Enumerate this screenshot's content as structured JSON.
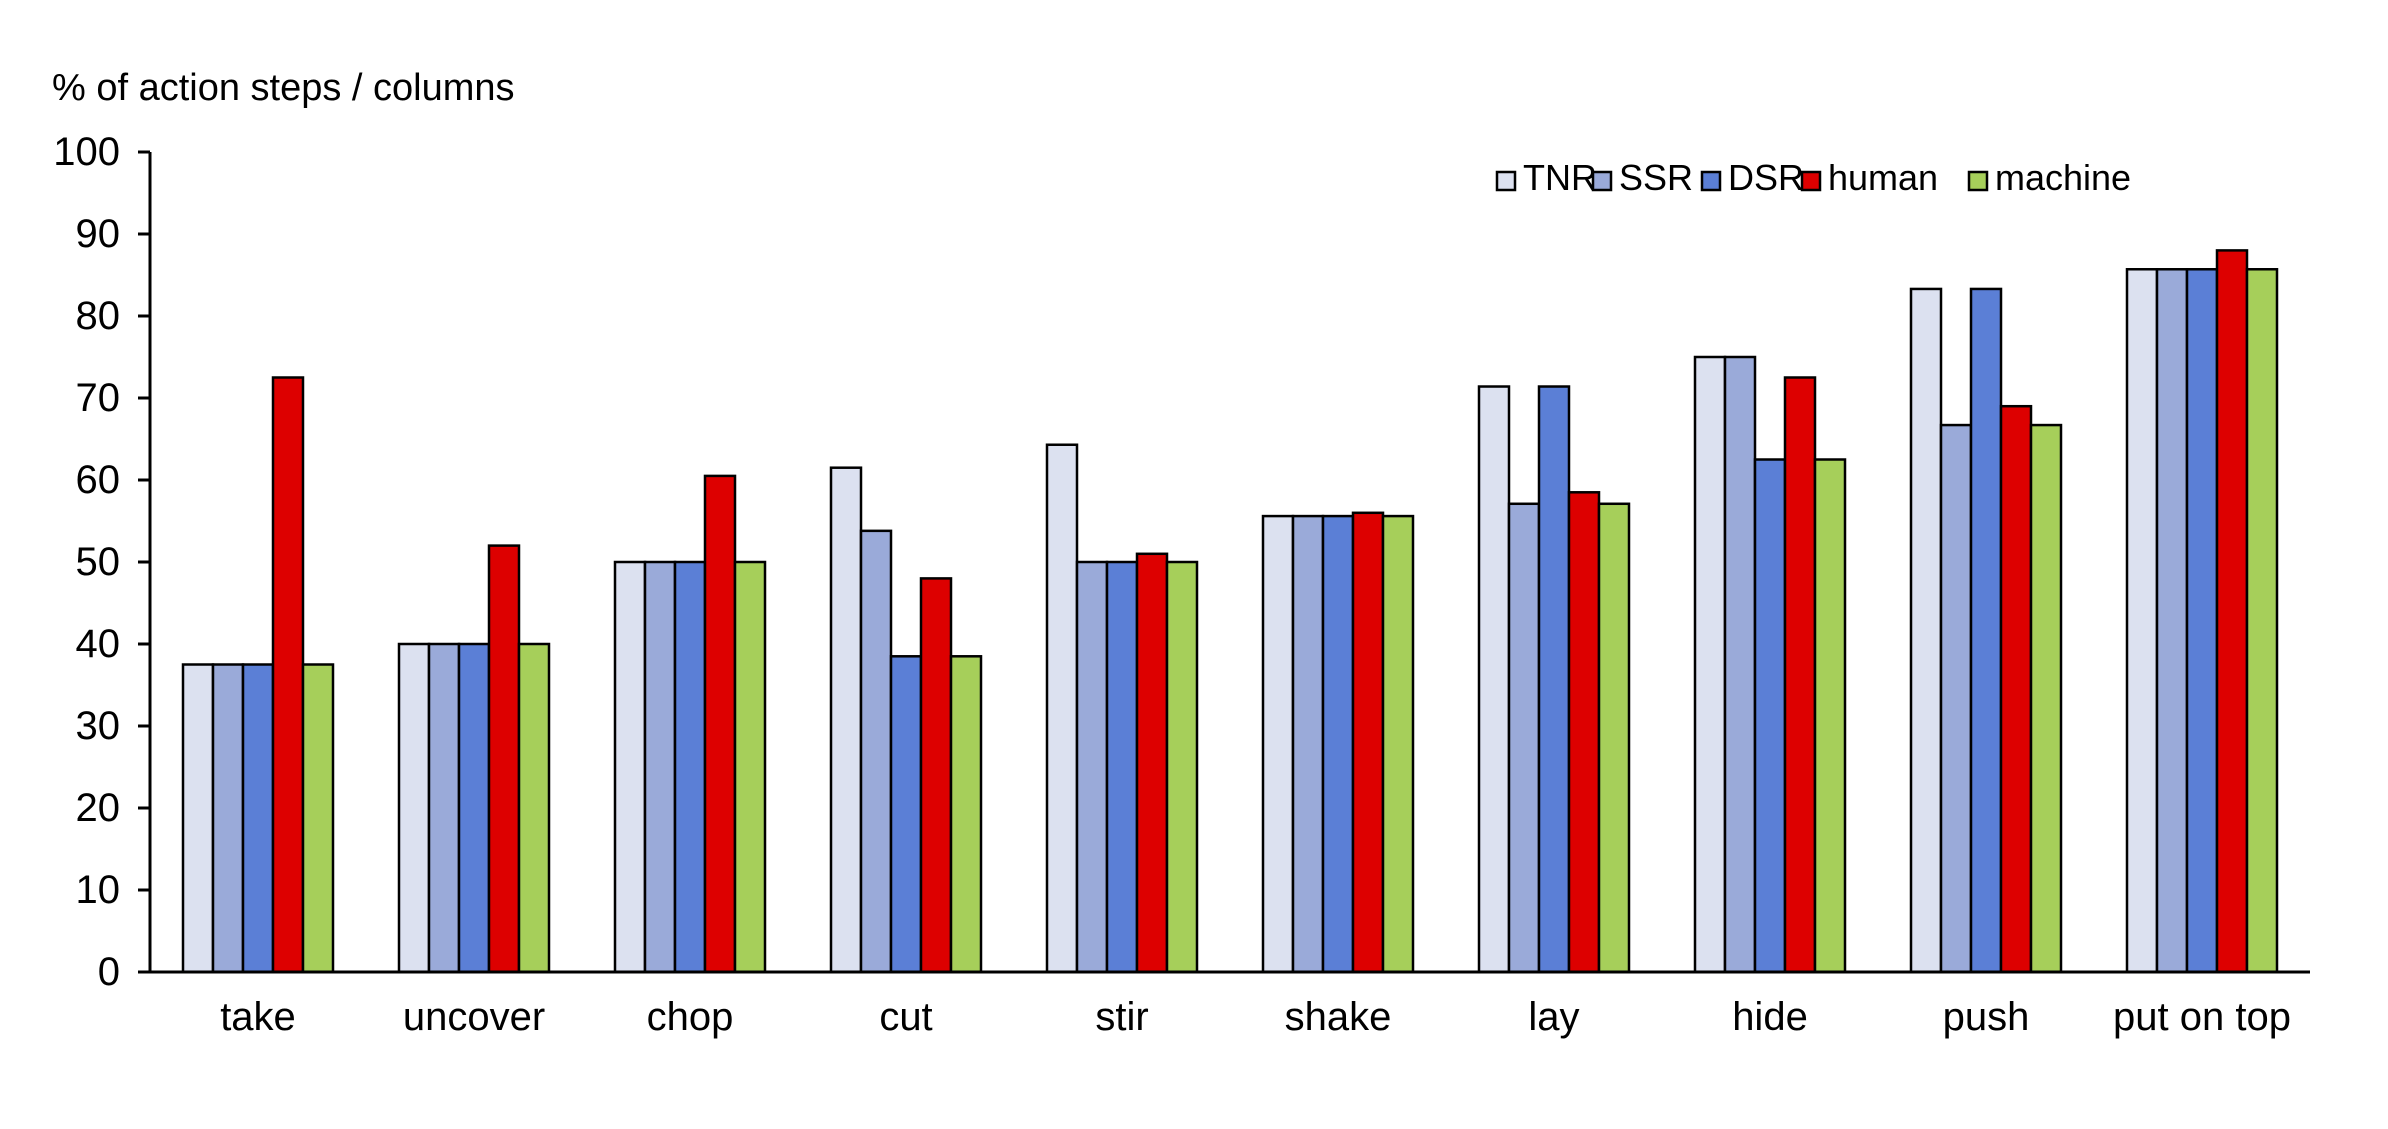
{
  "chart_data": {
    "type": "bar",
    "ylabel": "% of action steps / columns",
    "xlabel": "",
    "ylim": [
      0,
      100
    ],
    "yticks": [
      0,
      10,
      20,
      30,
      40,
      50,
      60,
      70,
      80,
      90,
      100
    ],
    "grid": false,
    "legend_position": "top-right",
    "categories": [
      "take",
      "uncover",
      "chop",
      "cut",
      "stir",
      "shake",
      "lay",
      "hide",
      "push",
      "put on top"
    ],
    "series": [
      {
        "name": "TNR",
        "color": "#dce1f0",
        "values": [
          37.5,
          40,
          50,
          61.5,
          64.3,
          55.6,
          71.4,
          75,
          83.3,
          85.7
        ]
      },
      {
        "name": "SSR",
        "color": "#9aaad9",
        "values": [
          37.5,
          40,
          50,
          53.8,
          50,
          55.6,
          57.1,
          75,
          66.7,
          85.7
        ]
      },
      {
        "name": "DSR",
        "color": "#5b7fd6",
        "values": [
          37.5,
          40,
          50,
          38.5,
          50,
          55.6,
          71.4,
          62.5,
          83.3,
          85.7
        ]
      },
      {
        "name": "human",
        "color": "#dd0000",
        "values": [
          72.5,
          52,
          60.5,
          48,
          51,
          56,
          58.5,
          72.5,
          69,
          88
        ]
      },
      {
        "name": "machine",
        "color": "#a6cf5a",
        "values": [
          37.5,
          40,
          50,
          38.5,
          50,
          55.6,
          57.1,
          62.5,
          66.7,
          85.7
        ]
      }
    ]
  }
}
